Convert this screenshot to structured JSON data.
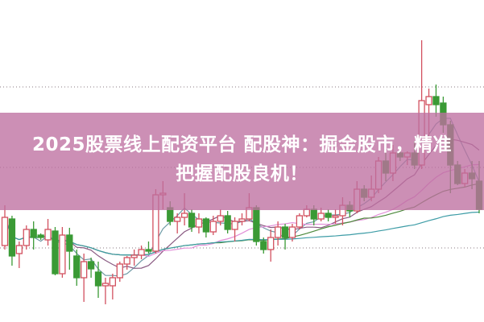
{
  "headline": {
    "line1": "2025股票线上配资平台 配股神：掘金股市，精准",
    "line2": "把握配股良机！"
  },
  "colors": {
    "up": "#d2505f",
    "down": "#3a9a35",
    "banner": "#c582ad",
    "ma_lines": [
      "#6f9aa6",
      "#8a5a82",
      "#e28fd8",
      "#4c8a3c",
      "#3d9ca6"
    ],
    "grid": "#8a7a80"
  },
  "chart_data": {
    "type": "candlestick",
    "title": "",
    "xlabel": "",
    "ylabel": "",
    "ylim": [
      0,
      40
    ],
    "grid": "horizontal-dotted",
    "ohlc": [
      [
        9.5,
        14.5,
        9,
        13
      ],
      [
        12.8,
        13.2,
        7,
        8.2
      ],
      [
        8.5,
        10,
        6.7,
        9.5
      ],
      [
        9.5,
        12,
        9,
        11.5
      ],
      [
        11.5,
        12.5,
        9,
        10.5
      ],
      [
        10.8,
        11,
        10.2,
        10.5
      ],
      [
        10.2,
        12.8,
        9.5,
        11.5
      ],
      [
        11.3,
        11.8,
        5.8,
        6
      ],
      [
        6,
        11.8,
        5.5,
        10.8
      ],
      [
        10.8,
        11.7,
        6.5,
        8.8
      ],
      [
        8.2,
        9,
        4.5,
        5.5
      ],
      [
        5.5,
        8.5,
        2.5,
        7.5
      ],
      [
        7.5,
        8,
        5.5,
        6.6
      ],
      [
        6.2,
        7.5,
        3,
        4.5
      ],
      [
        4.5,
        5.5,
        2.2,
        4.8
      ],
      [
        4.5,
        6,
        2.8,
        5.5
      ],
      [
        5.5,
        7.5,
        5,
        7.2
      ],
      [
        7.2,
        8.2,
        6.5,
        8
      ],
      [
        8,
        9,
        7,
        8.3
      ],
      [
        8.3,
        9.5,
        7.8,
        9
      ],
      [
        9,
        10,
        8.5,
        8.8
      ],
      [
        8.8,
        16.5,
        8.5,
        15.8
      ],
      [
        15.8,
        17.5,
        14,
        16
      ],
      [
        14.2,
        15,
        12,
        12.5
      ],
      [
        12.5,
        13.5,
        11,
        13
      ],
      [
        13,
        16,
        12,
        13.5
      ],
      [
        13.5,
        14,
        11.2,
        11.8
      ],
      [
        11.8,
        13.5,
        11,
        12.8
      ],
      [
        12.8,
        13,
        10.5,
        11.2
      ],
      [
        11.2,
        13.2,
        10.8,
        12.5
      ],
      [
        12.5,
        14,
        12,
        13.2
      ],
      [
        13.2,
        13.8,
        11,
        11.5
      ],
      [
        11.5,
        13,
        10,
        12.5
      ],
      [
        12.5,
        13.5,
        12,
        12.8
      ],
      [
        12.8,
        16,
        12.5,
        14.2
      ],
      [
        14.2,
        14.5,
        9.5,
        10
      ],
      [
        10,
        10.5,
        8.5,
        9
      ],
      [
        9,
        11.5,
        7.5,
        10.5
      ],
      [
        10.5,
        12.5,
        9.5,
        11.8
      ],
      [
        11.8,
        12.2,
        9,
        10.5
      ],
      [
        10.5,
        12.2,
        10,
        11.8
      ],
      [
        11.8,
        13.5,
        11.5,
        13.2
      ],
      [
        13.2,
        14.5,
        13,
        14
      ],
      [
        14,
        14.5,
        12,
        12.8
      ],
      [
        12.8,
        14.2,
        12.5,
        13.5
      ],
      [
        13.5,
        14,
        12.5,
        13
      ],
      [
        13,
        14,
        12.2,
        13.2
      ],
      [
        13.2,
        15.5,
        12,
        14.5
      ],
      [
        14.5,
        15,
        13,
        13.8
      ],
      [
        13.8,
        17.5,
        13.5,
        16.5
      ],
      [
        16.5,
        17,
        15,
        15.5
      ],
      [
        15.5,
        18.2,
        15,
        16.5
      ],
      [
        16.5,
        20.5,
        16,
        20
      ],
      [
        20,
        21.5,
        17.5,
        18.5
      ],
      [
        18.5,
        22,
        17.5,
        21
      ],
      [
        21,
        21.5,
        20,
        20.5
      ],
      [
        20.5,
        21.2,
        19.5,
        21
      ],
      [
        21,
        22.5,
        19,
        19.5
      ],
      [
        19.5,
        35,
        19,
        27.5
      ],
      [
        27,
        29,
        22,
        28
      ],
      [
        28,
        29.5,
        25.5,
        27
      ],
      [
        27.2,
        28,
        23.5,
        24.5
      ],
      [
        24.5,
        25,
        16,
        19.5
      ],
      [
        19.5,
        20,
        17,
        17.2
      ],
      [
        17.2,
        19,
        16.8,
        18.5
      ],
      [
        18.5,
        20,
        16.5,
        17.8
      ],
      [
        17.5,
        20,
        13.5,
        14
      ]
    ],
    "gridlines": [
      9.2,
      19.2,
      29.2
    ]
  }
}
